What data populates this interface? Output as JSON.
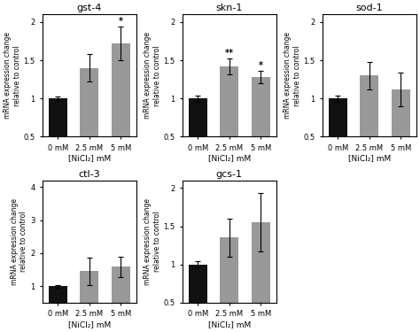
{
  "chart_data": [
    {
      "type": "bar",
      "title": "gst-4",
      "categories": [
        "0 mM",
        "2.5 mM",
        "5 mM"
      ],
      "values": [
        1.0,
        1.4,
        1.72
      ],
      "errors": [
        0.03,
        0.18,
        0.22
      ],
      "colors": [
        "#111111",
        "#999999",
        "#999999"
      ],
      "significance": [
        null,
        null,
        "*"
      ],
      "ylim": [
        0.5,
        2.1
      ],
      "yticks": [
        0.5,
        1,
        1.5,
        2
      ],
      "xlabel": "[NiCl₂] mM",
      "ylabel": "mRNA expression change\nrelative to control",
      "grid": false
    },
    {
      "type": "bar",
      "title": "skn-1",
      "categories": [
        "0 mM",
        "2.5 mM",
        "5 mM"
      ],
      "values": [
        1.0,
        1.42,
        1.28
      ],
      "errors": [
        0.04,
        0.1,
        0.08
      ],
      "colors": [
        "#111111",
        "#999999",
        "#999999"
      ],
      "significance": [
        null,
        "**",
        "*"
      ],
      "ylim": [
        0.5,
        2.1
      ],
      "yticks": [
        0.5,
        1,
        1.5,
        2
      ],
      "xlabel": "[NiCl₂] mM",
      "ylabel": "mRNA expression change\nrelative to control",
      "grid": false
    },
    {
      "type": "bar",
      "title": "sod-1",
      "categories": [
        "0 mM",
        "2.5 mM",
        "5 mM"
      ],
      "values": [
        1.0,
        1.3,
        1.12
      ],
      "errors": [
        0.04,
        0.18,
        0.22
      ],
      "colors": [
        "#111111",
        "#999999",
        "#999999"
      ],
      "significance": [
        null,
        null,
        null
      ],
      "ylim": [
        0.5,
        2.1
      ],
      "yticks": [
        0.5,
        1,
        1.5,
        2
      ],
      "xlabel": "[NiCl₂] mM",
      "ylabel": "mRNA expression change\nrelative to control",
      "grid": false
    },
    {
      "type": "bar",
      "title": "ctl-3",
      "categories": [
        "0 mM",
        "2.5 mM",
        "5 mM"
      ],
      "values": [
        1.0,
        1.45,
        1.58
      ],
      "errors": [
        0.04,
        0.42,
        0.3
      ],
      "colors": [
        "#111111",
        "#999999",
        "#999999"
      ],
      "significance": [
        null,
        null,
        null
      ],
      "ylim": [
        0.5,
        4.2
      ],
      "yticks": [
        1,
        2,
        3,
        4
      ],
      "xlabel": "[NiCl₂] mM",
      "ylabel": "mRNA expression change\nrelative to control",
      "grid": false
    },
    {
      "type": "bar",
      "title": "gcs-1",
      "categories": [
        "0 mM",
        "2.5 mM",
        "5 mM"
      ],
      "values": [
        1.0,
        1.35,
        1.55
      ],
      "errors": [
        0.04,
        0.25,
        0.38
      ],
      "colors": [
        "#111111",
        "#999999",
        "#999999"
      ],
      "significance": [
        null,
        null,
        null
      ],
      "ylim": [
        0.5,
        2.1
      ],
      "yticks": [
        0.5,
        1,
        1.5,
        2
      ],
      "xlabel": "[NiCl₂] mM",
      "ylabel": "mRNA expression change\nrelative to control",
      "grid": false
    }
  ]
}
